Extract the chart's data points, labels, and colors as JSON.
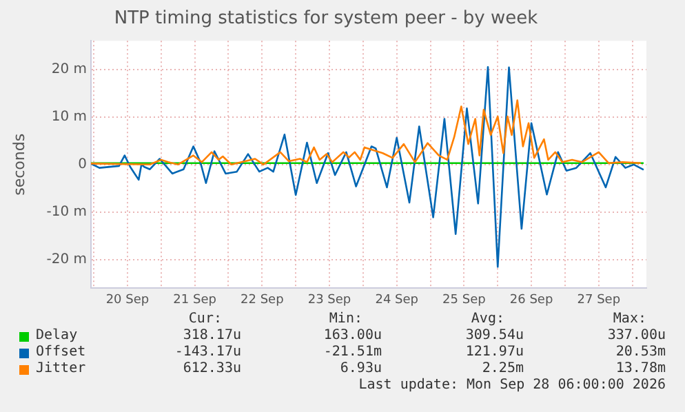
{
  "chart_data": {
    "type": "line",
    "title": "NTP timing statistics for system peer - by week",
    "ylabel": "seconds",
    "xlim": [
      "2026-09-19T23:00",
      "2026-09-28T05:00"
    ],
    "xticks": [
      {
        "value": "2026-09-20T00:00",
        "label": null
      },
      {
        "value": "2026-09-20T12:00",
        "label": "20 Sep"
      },
      {
        "value": "2026-09-21T00:00",
        "label": null
      },
      {
        "value": "2026-09-21T12:00",
        "label": "21 Sep"
      },
      {
        "value": "2026-09-22T00:00",
        "label": null
      },
      {
        "value": "2026-09-22T12:00",
        "label": "22 Sep"
      },
      {
        "value": "2026-09-23T00:00",
        "label": null
      },
      {
        "value": "2026-09-23T12:00",
        "label": "23 Sep"
      },
      {
        "value": "2026-09-24T00:00",
        "label": null
      },
      {
        "value": "2026-09-24T12:00",
        "label": "24 Sep"
      },
      {
        "value": "2026-09-25T00:00",
        "label": null
      },
      {
        "value": "2026-09-25T12:00",
        "label": "25 Sep"
      },
      {
        "value": "2026-09-26T00:00",
        "label": null
      },
      {
        "value": "2026-09-26T12:00",
        "label": "26 Sep"
      },
      {
        "value": "2026-09-27T00:00",
        "label": null
      },
      {
        "value": "2026-09-27T12:00",
        "label": "27 Sep"
      },
      {
        "value": "2026-09-28T00:00",
        "label": null
      }
    ],
    "ylim": [
      -26,
      26
    ],
    "yticks": [
      {
        "value": -20,
        "label": "-20 m"
      },
      {
        "value": -10,
        "label": "-10 m"
      },
      0,
      {
        "value": 10,
        "label": "10 m"
      },
      {
        "value": 20,
        "label": "20 m"
      }
    ],
    "grid": true,
    "legend": "bottom",
    "marker": "none",
    "series": [
      {
        "name": "Delay",
        "color": "#00cc00",
        "x": [
          "2026-09-19T23:00",
          "2026-09-28T04:00"
        ],
        "values": [
          0.3,
          0.3
        ]
      },
      {
        "name": "Offset",
        "color": "#0066b3",
        "x": [
          "2026-09-19T23:00",
          "2026-09-20T02:00",
          "2026-09-20T09:00",
          "2026-09-20T11:00",
          "2026-09-20T13:00",
          "2026-09-20T16:00",
          "2026-09-20T17:00",
          "2026-09-20T18:00",
          "2026-09-20T20:00",
          "2026-09-20T23:30",
          "2026-09-21T04:00",
          "2026-09-21T08:00",
          "2026-09-21T11:30",
          "2026-09-21T14:00",
          "2026-09-21T16:00",
          "2026-09-21T19:00",
          "2026-09-21T23:00",
          "2026-09-22T03:00",
          "2026-09-22T07:00",
          "2026-09-22T11:00",
          "2026-09-22T14:00",
          "2026-09-22T16:00",
          "2026-09-22T20:00",
          "2026-09-23T00:00",
          "2026-09-23T04:00",
          "2026-09-23T07:30",
          "2026-09-23T11:30",
          "2026-09-23T14:00",
          "2026-09-23T18:00",
          "2026-09-23T21:30",
          "2026-09-24T03:00",
          "2026-09-24T04:30",
          "2026-09-24T08:30",
          "2026-09-24T12:00",
          "2026-09-24T16:30",
          "2026-09-24T20:00",
          "2026-09-25T01:00",
          "2026-09-25T05:00",
          "2026-09-25T09:00",
          "2026-09-25T13:00",
          "2026-09-25T17:00",
          "2026-09-25T20:30",
          "2026-09-26T00:00",
          "2026-09-26T04:00",
          "2026-09-26T08:30",
          "2026-09-26T12:00",
          "2026-09-26T17:30",
          "2026-09-26T21:30",
          "2026-09-27T00:30",
          "2026-09-27T04:00",
          "2026-09-27T09:00",
          "2026-09-27T14:30",
          "2026-09-27T18:00",
          "2026-09-27T21:30",
          "2026-09-28T00:30",
          "2026-09-28T04:00"
        ],
        "values": [
          0.2,
          -0.7,
          -0.3,
          1.9,
          -0.5,
          -3.2,
          0,
          -0.5,
          -1,
          1.2,
          -1.9,
          -1,
          3.8,
          0.5,
          -3.9,
          2.8,
          -1.9,
          -1.5,
          2.2,
          -1.5,
          -0.7,
          -1.5,
          6.3,
          -6.4,
          4.6,
          -3.9,
          2.4,
          -2.2,
          2.6,
          -4.6,
          3.8,
          3.4,
          -4.8,
          5.6,
          -8,
          8,
          -11.1,
          9.6,
          -14.6,
          11.8,
          -8.2,
          20.5,
          -21.5,
          20.4,
          -13.5,
          8.7,
          -6.3,
          2.6,
          -1.3,
          -0.7,
          2.4,
          -4.8,
          1.6,
          -0.7,
          0,
          -1.1
        ]
      },
      {
        "name": "Jitter",
        "color": "#ff8000",
        "x": [
          "2026-09-19T23:00",
          "2026-09-20T20:00",
          "2026-09-21T00:00",
          "2026-09-21T02:30",
          "2026-09-21T06:00",
          "2026-09-21T11:30",
          "2026-09-21T14:30",
          "2026-09-21T18:00",
          "2026-09-21T20:30",
          "2026-09-21T22:00",
          "2026-09-22T01:00",
          "2026-09-22T06:00",
          "2026-09-22T09:30",
          "2026-09-22T12:30",
          "2026-09-22T18:30",
          "2026-09-22T21:30",
          "2026-09-23T01:30",
          "2026-09-23T04:00",
          "2026-09-23T06:30",
          "2026-09-23T08:30",
          "2026-09-23T11:00",
          "2026-09-23T13:00",
          "2026-09-23T17:00",
          "2026-09-23T19:00",
          "2026-09-23T21:00",
          "2026-09-23T23:00",
          "2026-09-24T00:30",
          "2026-09-24T07:00",
          "2026-09-24T10:30",
          "2026-09-24T14:30",
          "2026-09-24T18:30",
          "2026-09-24T23:00",
          "2026-09-25T03:00",
          "2026-09-25T06:00",
          "2026-09-25T08:30",
          "2026-09-25T11:00",
          "2026-09-25T13:30",
          "2026-09-25T16:00",
          "2026-09-25T17:30",
          "2026-09-25T19:00",
          "2026-09-25T21:30",
          "2026-09-26T00:00",
          "2026-09-26T02:00",
          "2026-09-26T03:30",
          "2026-09-26T05:00",
          "2026-09-26T07:00",
          "2026-09-26T09:00",
          "2026-09-26T11:00",
          "2026-09-26T13:00",
          "2026-09-26T16:30",
          "2026-09-26T18:00",
          "2026-09-26T20:30",
          "2026-09-26T23:00",
          "2026-09-27T02:30",
          "2026-09-27T06:00",
          "2026-09-27T12:00",
          "2026-09-27T15:30",
          "2026-09-27T20:30",
          "2026-09-28T03:00"
        ],
        "values": [
          0.2,
          0,
          1,
          0.5,
          0,
          1.9,
          0.5,
          2.6,
          1,
          1.7,
          0,
          0.7,
          1.2,
          0,
          2.6,
          0.7,
          1.2,
          0.5,
          3.6,
          1,
          2.2,
          0.5,
          2.6,
          1.5,
          2.6,
          1,
          3.6,
          2.4,
          1.4,
          4.3,
          0.5,
          4.5,
          1.9,
          1,
          5.8,
          12.2,
          4.3,
          9.6,
          1.9,
          11.5,
          6.2,
          10.1,
          2.4,
          10.1,
          6.2,
          13.5,
          3.8,
          8.7,
          1.4,
          5.3,
          1,
          2.6,
          0.5,
          1,
          0.5,
          2.6,
          0.3,
          0.5,
          0.3
        ]
      }
    ],
    "annotations": [
      "Cur:",
      "Min:",
      "Avg:",
      "Max:",
      "318.17u",
      "163.00u",
      "309.54u",
      "337.00u",
      "-143.17u",
      "-21.51m",
      "121.97u",
      "20.53m",
      "612.33u",
      "6.93u",
      "2.25m",
      "13.78m",
      "Last update: Mon Sep 28 06:00:00 2026"
    ]
  }
}
